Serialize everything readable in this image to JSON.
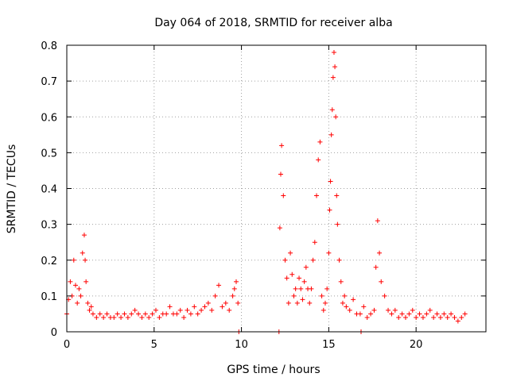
{
  "chart_data": {
    "type": "scatter",
    "title": "Day 064 of 2018, SRMTID for receiver alba",
    "xlabel": "GPS time / hours",
    "ylabel": "SRMTID / TECUs",
    "xlim": [
      0,
      24
    ],
    "ylim": [
      0,
      0.8
    ],
    "x_ticks": [
      0,
      5,
      10,
      15,
      20
    ],
    "x_tick_labels": [
      "0",
      "5",
      "10",
      "15",
      "20"
    ],
    "y_ticks": [
      0,
      0.1,
      0.2,
      0.3,
      0.4,
      0.5,
      0.6,
      0.7,
      0.8
    ],
    "y_tick_labels": [
      "0",
      "0.1",
      "0.2",
      "0.3",
      "0.4",
      "0.5",
      "0.6",
      "0.7",
      "0.8"
    ],
    "grid": true,
    "marker": "plus",
    "series_color": "#ff0000",
    "series": [
      {
        "name": "SRMTID",
        "x": [
          0.0,
          0.1,
          0.2,
          0.3,
          0.4,
          0.5,
          0.6,
          0.7,
          0.8,
          0.9,
          1.0,
          1.05,
          1.1,
          1.2,
          1.3,
          1.4,
          1.5,
          1.7,
          1.9,
          2.1,
          2.3,
          2.5,
          2.7,
          2.9,
          3.1,
          3.3,
          3.5,
          3.7,
          3.9,
          4.1,
          4.3,
          4.5,
          4.7,
          4.9,
          5.1,
          5.3,
          5.5,
          5.7,
          5.9,
          6.1,
          6.3,
          6.5,
          6.7,
          6.9,
          7.1,
          7.3,
          7.5,
          7.7,
          7.9,
          8.1,
          8.3,
          8.5,
          8.7,
          8.9,
          9.1,
          9.3,
          9.5,
          9.6,
          9.7,
          9.8,
          9.85,
          12.15,
          12.2,
          12.25,
          12.3,
          12.4,
          12.5,
          12.6,
          12.7,
          12.8,
          12.9,
          13.0,
          13.1,
          13.2,
          13.3,
          13.4,
          13.5,
          13.6,
          13.7,
          13.8,
          13.9,
          14.0,
          14.1,
          14.2,
          14.3,
          14.4,
          14.5,
          14.6,
          14.7,
          14.8,
          14.9,
          15.0,
          15.05,
          15.1,
          15.15,
          15.2,
          15.25,
          15.3,
          15.35,
          15.4,
          15.45,
          15.5,
          15.6,
          15.7,
          15.8,
          15.9,
          16.0,
          16.2,
          16.4,
          16.6,
          16.8,
          16.85,
          17.0,
          17.2,
          17.4,
          17.6,
          17.7,
          17.8,
          17.9,
          18.0,
          18.2,
          18.4,
          18.6,
          18.8,
          19.0,
          19.2,
          19.4,
          19.6,
          19.8,
          20.0,
          20.2,
          20.4,
          20.6,
          20.8,
          21.0,
          21.2,
          21.4,
          21.6,
          21.8,
          22.0,
          22.2,
          22.4,
          22.6,
          22.8
        ],
        "y": [
          0.05,
          0.09,
          0.14,
          0.1,
          0.2,
          0.13,
          0.08,
          0.12,
          0.1,
          0.22,
          0.27,
          0.2,
          0.14,
          0.08,
          0.06,
          0.07,
          0.05,
          0.04,
          0.05,
          0.04,
          0.05,
          0.04,
          0.04,
          0.05,
          0.04,
          0.05,
          0.04,
          0.05,
          0.06,
          0.05,
          0.04,
          0.05,
          0.04,
          0.05,
          0.06,
          0.04,
          0.05,
          0.05,
          0.07,
          0.05,
          0.05,
          0.06,
          0.04,
          0.06,
          0.05,
          0.07,
          0.05,
          0.06,
          0.07,
          0.08,
          0.06,
          0.1,
          0.13,
          0.07,
          0.08,
          0.06,
          0.1,
          0.12,
          0.14,
          0.08,
          0.0,
          0.0,
          0.29,
          0.44,
          0.52,
          0.38,
          0.2,
          0.15,
          0.08,
          0.22,
          0.16,
          0.1,
          0.12,
          0.08,
          0.15,
          0.12,
          0.09,
          0.14,
          0.18,
          0.12,
          0.08,
          0.12,
          0.2,
          0.25,
          0.38,
          0.48,
          0.53,
          0.1,
          0.06,
          0.08,
          0.12,
          0.22,
          0.34,
          0.42,
          0.55,
          0.62,
          0.71,
          0.78,
          0.74,
          0.6,
          0.38,
          0.3,
          0.2,
          0.14,
          0.08,
          0.1,
          0.07,
          0.06,
          0.09,
          0.05,
          0.05,
          0.0,
          0.07,
          0.04,
          0.05,
          0.06,
          0.18,
          0.31,
          0.22,
          0.14,
          0.1,
          0.06,
          0.05,
          0.06,
          0.04,
          0.05,
          0.04,
          0.05,
          0.06,
          0.04,
          0.05,
          0.04,
          0.05,
          0.06,
          0.04,
          0.05,
          0.04,
          0.05,
          0.04,
          0.05,
          0.04,
          0.03,
          0.04,
          0.05
        ]
      }
    ]
  }
}
